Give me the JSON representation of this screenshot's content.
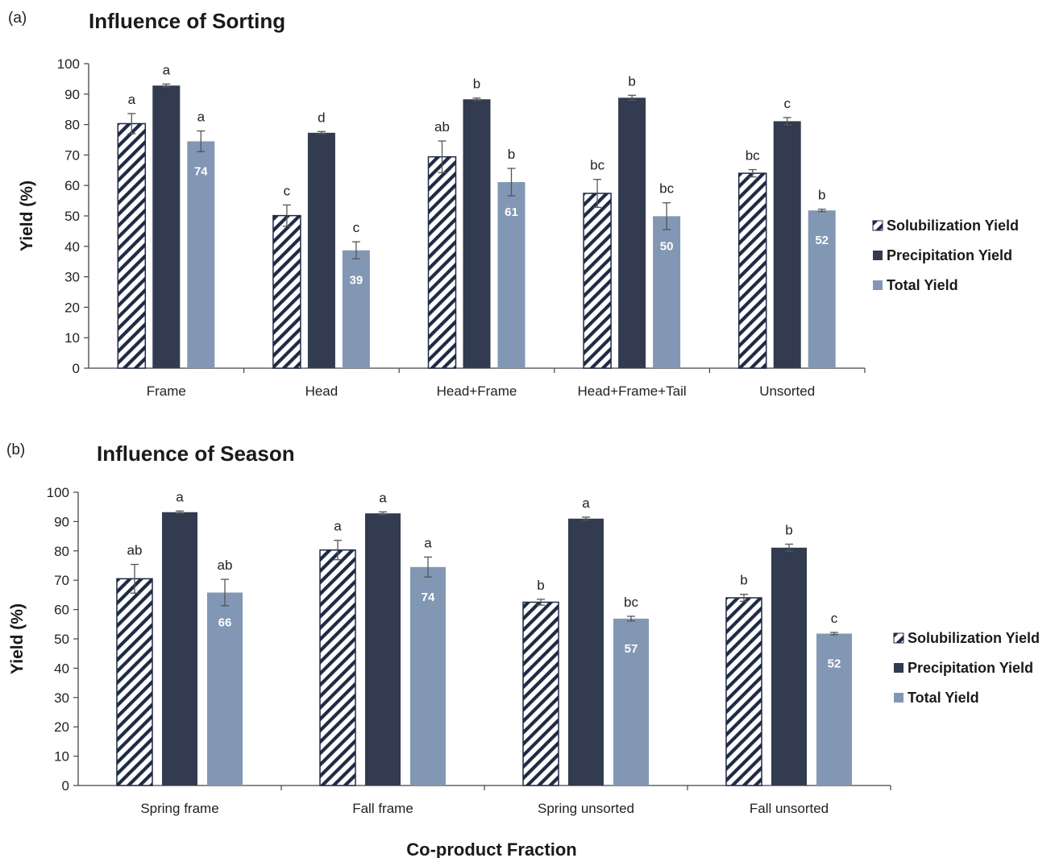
{
  "figure": {
    "xlabel": "Co-product Fraction"
  },
  "colors": {
    "solubilization_stroke": "#1f2a44",
    "precipitation": "#323b4f",
    "total": "#8297b3",
    "axis": "#444444"
  },
  "chart_data": [
    {
      "type": "bar",
      "panel_label": "(a)",
      "title": "Influence of Sorting",
      "ylabel": "Yield (%)",
      "ylim": [
        0,
        100
      ],
      "yticks": [
        0,
        10,
        20,
        30,
        40,
        50,
        60,
        70,
        80,
        90,
        100
      ],
      "grid": false,
      "legend_position": "right",
      "categories": [
        "Frame",
        "Head",
        "Head+Frame",
        "Head+Frame+Tail",
        "Unsorted"
      ],
      "series": [
        {
          "name": "Solubilization Yield",
          "pattern": "diagonal-hatch",
          "values": [
            80.3,
            50.1,
            69.4,
            57.4,
            64.0
          ],
          "errors": [
            3.3,
            3.5,
            5.2,
            4.6,
            1.2
          ],
          "letters": [
            "a",
            "c",
            "ab",
            "bc",
            "bc"
          ],
          "data_labels": [
            "",
            "",
            "",
            "",
            ""
          ]
        },
        {
          "name": "Precipitation Yield",
          "pattern": "solid",
          "values": [
            92.8,
            77.3,
            88.3,
            88.8,
            81.1
          ],
          "errors": [
            0.5,
            0.4,
            0.4,
            0.8,
            1.2
          ],
          "letters": [
            "a",
            "d",
            "b",
            "b",
            "c"
          ],
          "data_labels": [
            "",
            "",
            "",
            "",
            ""
          ]
        },
        {
          "name": "Total Yield",
          "pattern": "solid",
          "values": [
            74.5,
            38.7,
            61.1,
            49.9,
            51.8
          ],
          "errors": [
            3.4,
            2.8,
            4.5,
            4.4,
            0.4
          ],
          "letters": [
            "a",
            "c",
            "b",
            "bc",
            "b"
          ],
          "data_labels": [
            "74",
            "39",
            "61",
            "50",
            "52"
          ]
        }
      ]
    },
    {
      "type": "bar",
      "panel_label": "(b)",
      "title": "Influence of Season",
      "ylabel": "Yield (%)",
      "ylim": [
        0,
        100
      ],
      "yticks": [
        0,
        10,
        20,
        30,
        40,
        50,
        60,
        70,
        80,
        90,
        100
      ],
      "grid": false,
      "legend_position": "right",
      "categories": [
        "Spring frame",
        "Fall frame",
        "Spring unsorted",
        "Fall unsorted"
      ],
      "series": [
        {
          "name": "Solubilization Yield",
          "pattern": "diagonal-hatch",
          "values": [
            70.5,
            80.3,
            62.5,
            64.0
          ],
          "errors": [
            4.9,
            3.3,
            1.0,
            1.2
          ],
          "letters": [
            "ab",
            "a",
            "b",
            "b"
          ],
          "data_labels": [
            "",
            "",
            "",
            ""
          ]
        },
        {
          "name": "Precipitation Yield",
          "pattern": "solid",
          "values": [
            93.2,
            92.8,
            91.0,
            81.1
          ],
          "errors": [
            0.4,
            0.5,
            0.5,
            1.2
          ],
          "letters": [
            "a",
            "a",
            "a",
            "b"
          ],
          "data_labels": [
            "",
            "",
            "",
            ""
          ]
        },
        {
          "name": "Total Yield",
          "pattern": "solid",
          "values": [
            65.8,
            74.5,
            56.9,
            51.8
          ],
          "errors": [
            4.5,
            3.4,
            0.8,
            0.4
          ],
          "letters": [
            "ab",
            "a",
            "bc",
            "c"
          ],
          "data_labels": [
            "66",
            "74",
            "57",
            "52"
          ]
        }
      ]
    }
  ]
}
